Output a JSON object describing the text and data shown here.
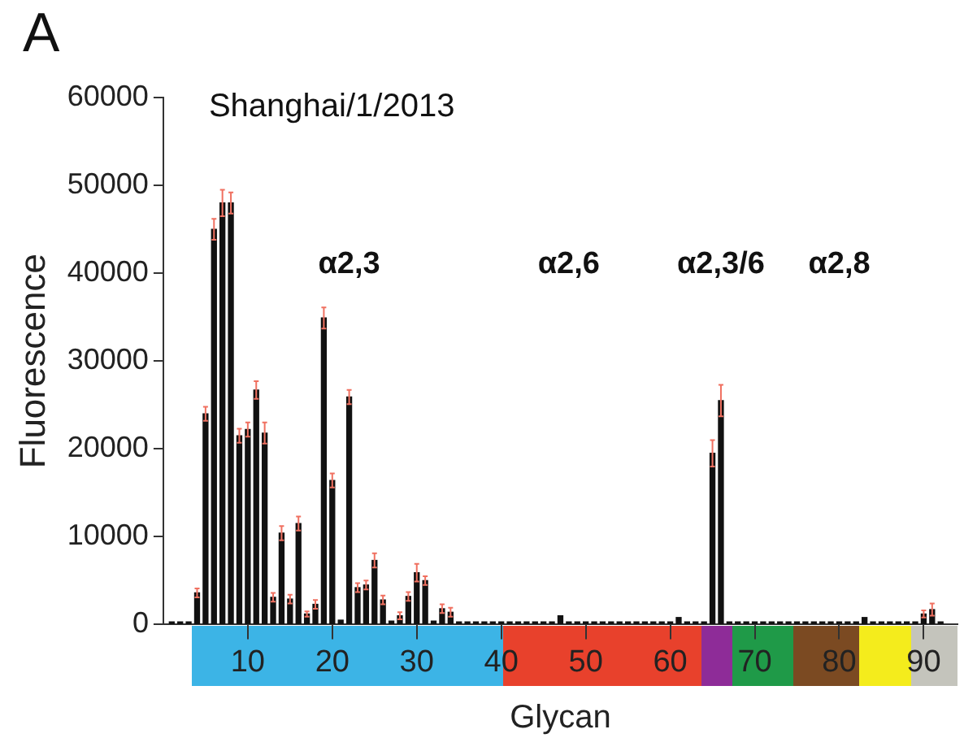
{
  "chart_data": {
    "type": "bar",
    "title": "Shanghai/1/2013",
    "xlabel": "Glycan",
    "ylabel": "Fluorescence",
    "annotations": [
      "A",
      "α2,3",
      "α2,6",
      "α2,3/6",
      "α2,8"
    ],
    "x": [
      1,
      2,
      3,
      4,
      5,
      6,
      7,
      8,
      9,
      10,
      11,
      12,
      13,
      14,
      15,
      16,
      17,
      18,
      19,
      20,
      21,
      22,
      23,
      24,
      25,
      26,
      27,
      28,
      29,
      30,
      31,
      32,
      33,
      34,
      35,
      36,
      37,
      38,
      39,
      40,
      41,
      42,
      43,
      44,
      45,
      46,
      47,
      48,
      49,
      50,
      51,
      52,
      53,
      54,
      55,
      56,
      57,
      58,
      59,
      60,
      61,
      62,
      63,
      64,
      65,
      66,
      67,
      68,
      69,
      70,
      71,
      72,
      73,
      74,
      75,
      76,
      77,
      78,
      79,
      80,
      81,
      82,
      83,
      84,
      85,
      86,
      87,
      88,
      89,
      90,
      91,
      92
    ],
    "values": [
      300,
      300,
      300,
      3600,
      24000,
      45000,
      48000,
      48000,
      21500,
      22200,
      26700,
      21800,
      3100,
      10400,
      2900,
      11500,
      1200,
      2300,
      34900,
      16400,
      500,
      25900,
      4200,
      4500,
      7300,
      2800,
      400,
      1000,
      3200,
      5900,
      5000,
      400,
      1800,
      1400,
      300,
      300,
      300,
      300,
      300,
      300,
      300,
      300,
      300,
      300,
      300,
      300,
      1000,
      300,
      300,
      300,
      300,
      300,
      300,
      300,
      300,
      300,
      300,
      300,
      300,
      300,
      800,
      300,
      300,
      300,
      19500,
      25500,
      300,
      300,
      300,
      300,
      300,
      300,
      300,
      300,
      300,
      300,
      300,
      300,
      300,
      300,
      300,
      300,
      800,
      300,
      300,
      300,
      300,
      300,
      300,
      1200,
      1700,
      300
    ],
    "errors": [
      null,
      null,
      null,
      500,
      800,
      1200,
      1500,
      1200,
      800,
      800,
      1000,
      1200,
      500,
      800,
      500,
      800,
      300,
      500,
      1200,
      800,
      null,
      800,
      500,
      500,
      800,
      500,
      null,
      400,
      500,
      1000,
      500,
      null,
      500,
      500,
      null,
      null,
      null,
      null,
      null,
      null,
      null,
      null,
      null,
      null,
      null,
      null,
      null,
      null,
      null,
      null,
      null,
      null,
      null,
      null,
      null,
      null,
      null,
      null,
      null,
      null,
      null,
      null,
      null,
      null,
      1500,
      1800,
      null,
      null,
      null,
      null,
      null,
      null,
      null,
      null,
      null,
      null,
      null,
      null,
      null,
      null,
      null,
      null,
      null,
      null,
      null,
      null,
      null,
      null,
      null,
      400,
      700,
      null
    ],
    "color": "#111111",
    "xlim": [
      0,
      94
    ],
    "xticks": [
      10,
      20,
      30,
      40,
      50,
      60,
      70,
      80,
      90
    ],
    "ylim": [
      0,
      60000
    ],
    "yticks": [
      0,
      10000,
      20000,
      30000,
      40000,
      50000,
      60000
    ],
    "grid": false,
    "legend": false
  }
}
